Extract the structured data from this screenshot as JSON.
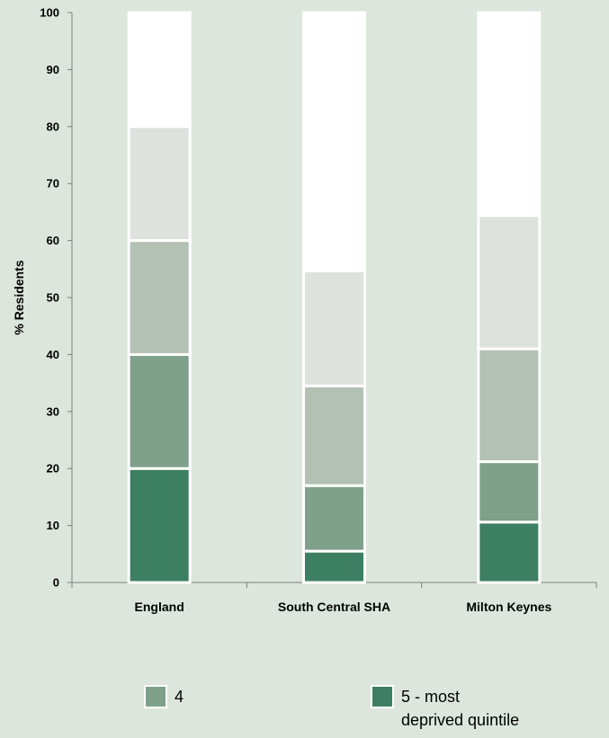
{
  "chart_data": {
    "type": "bar",
    "stacked": true,
    "categories": [
      "England",
      "South Central SHA",
      "Milton Keynes"
    ],
    "ylabel": "% Residents",
    "ylim": [
      0,
      100
    ],
    "yticks": [
      0,
      10,
      20,
      30,
      40,
      50,
      60,
      70,
      80,
      90,
      100
    ],
    "series": [
      {
        "name": "5 - most deprived quintile",
        "color": "#3d7f62",
        "values": [
          20,
          5.5,
          10.6
        ]
      },
      {
        "name": "4",
        "color": "#7fa08a",
        "values": [
          20,
          11.5,
          10.6
        ]
      },
      {
        "color": "#b2c1b3",
        "values": [
          20,
          17.5,
          19.8
        ]
      },
      {
        "color": "#dde2dd",
        "values": [
          20,
          20.2,
          23.4
        ]
      },
      {
        "color": "#ffffff",
        "values": [
          20,
          45.3,
          35.6
        ]
      }
    ],
    "legend": [
      {
        "label": "4",
        "color": "#7fa08a"
      },
      {
        "label": "5 - most\ndeprived quintile",
        "color": "#3d7f62"
      }
    ],
    "grid": false,
    "legend_position": "bottom"
  }
}
